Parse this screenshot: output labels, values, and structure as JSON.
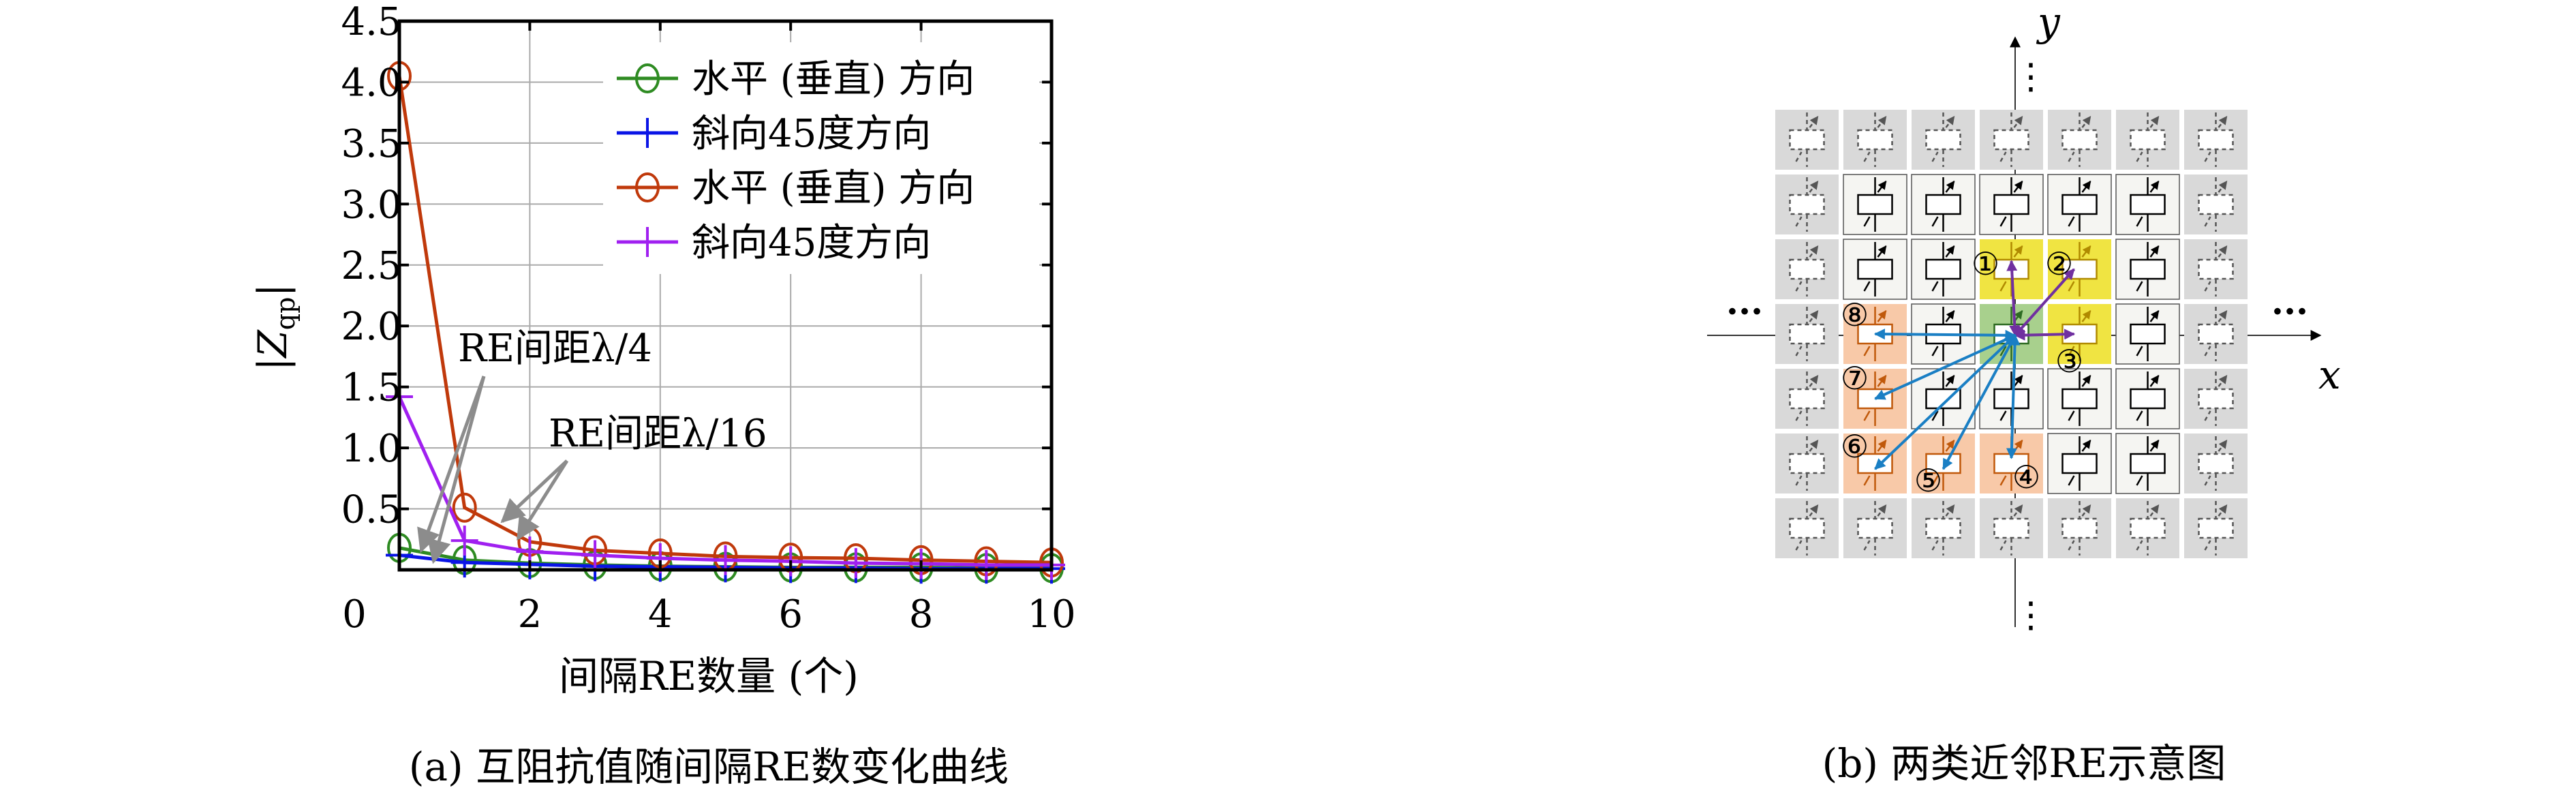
{
  "chart_data": {
    "type": "line",
    "xlabel": "间隔RE数量 (个)",
    "ylabel": "|Z_qp|",
    "ylabel_main": "|Z",
    "ylabel_sub": "qp",
    "ylabel_end": "|",
    "xlim": [
      0,
      10
    ],
    "ylim": [
      0,
      4.5
    ],
    "grid": true,
    "legend_position": "top-right",
    "x_ticks": [
      "0",
      "2",
      "4",
      "6",
      "8",
      "10"
    ],
    "y_ticks": [
      "0.5",
      "1.0",
      "1.5",
      "2.0",
      "2.5",
      "3.0",
      "3.5",
      "4.0",
      "4.5"
    ],
    "x": [
      0,
      1,
      2,
      3,
      4,
      5,
      6,
      7,
      8,
      9,
      10
    ],
    "series": [
      {
        "name": "水平 (垂直) 方向",
        "color": "#2e8b22",
        "marker": "circle",
        "values": [
          0.18,
          0.08,
          0.055,
          0.04,
          0.03,
          0.025,
          0.02,
          0.02,
          0.02,
          0.015,
          0.015
        ]
      },
      {
        "name": "斜向45度方向",
        "color": "#0a14e6",
        "marker": "plus",
        "values": [
          0.12,
          0.06,
          0.045,
          0.03,
          0.025,
          0.02,
          0.015,
          0.015,
          0.01,
          0.01,
          0.01
        ]
      },
      {
        "name": "水平 (垂直) 方向",
        "color": "#c0390b",
        "marker": "circle",
        "values": [
          4.05,
          0.51,
          0.23,
          0.16,
          0.135,
          0.11,
          0.1,
          0.095,
          0.08,
          0.07,
          0.06
        ]
      },
      {
        "name": "斜向45度方向",
        "color": "#a020f0",
        "marker": "plus",
        "values": [
          1.42,
          0.24,
          0.15,
          0.12,
          0.095,
          0.08,
          0.07,
          0.055,
          0.05,
          0.04,
          0.04
        ]
      }
    ],
    "annotations": [
      {
        "text": "RE间距λ/4"
      },
      {
        "text": "RE间距λ/16"
      }
    ],
    "caption": "(a) 互阻抗值随间隔RE数变化曲线"
  },
  "diagram": {
    "caption": "(b) 两类近邻RE示意图",
    "x_axis_label": "x",
    "y_axis_label": "y",
    "ellipsis_vertical": "⋮",
    "ellipsis_horizontal": "···",
    "neighbor_labels": [
      "①",
      "②",
      "③",
      "④",
      "⑤",
      "⑥",
      "⑦",
      "⑧"
    ],
    "colors": {
      "outer": "#d9d9d9",
      "inner": "#f5f5f2",
      "center": "#a8d08d",
      "type1": "#f0e442",
      "type2": "#f8c9a8",
      "arrow_type1": "#7030a0",
      "arrow_type2": "#1a7fc4"
    }
  }
}
